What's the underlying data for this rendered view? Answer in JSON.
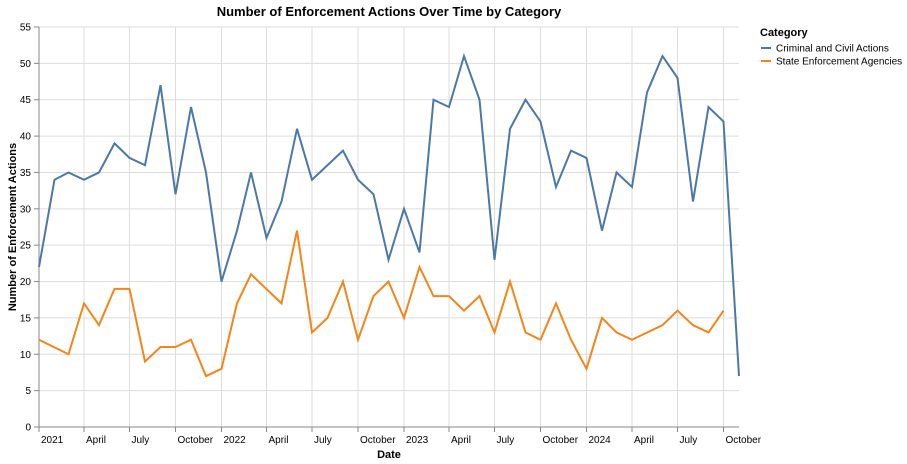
{
  "chart_data": {
    "type": "line",
    "title": "Number of Enforcement Actions Over Time by Category",
    "xlabel": "Date",
    "ylabel": "Number of Enforcement Actions",
    "ylim": [
      0,
      55
    ],
    "yticks": [
      0,
      5,
      10,
      15,
      20,
      25,
      30,
      35,
      40,
      45,
      50,
      55
    ],
    "xlim": [
      "2021-01-01",
      "2024-11-01"
    ],
    "xticks": [
      {
        "date": "2021-01-01",
        "label": "2021"
      },
      {
        "date": "2021-04-01",
        "label": "April"
      },
      {
        "date": "2021-07-01",
        "label": "July"
      },
      {
        "date": "2021-10-01",
        "label": "October"
      },
      {
        "date": "2022-01-01",
        "label": "2022"
      },
      {
        "date": "2022-04-01",
        "label": "April"
      },
      {
        "date": "2022-07-01",
        "label": "July"
      },
      {
        "date": "2022-10-01",
        "label": "October"
      },
      {
        "date": "2023-01-01",
        "label": "2023"
      },
      {
        "date": "2023-04-01",
        "label": "April"
      },
      {
        "date": "2023-07-01",
        "label": "July"
      },
      {
        "date": "2023-10-01",
        "label": "October"
      },
      {
        "date": "2024-01-01",
        "label": "2024"
      },
      {
        "date": "2024-04-01",
        "label": "April"
      },
      {
        "date": "2024-07-01",
        "label": "July"
      },
      {
        "date": "2024-10-01",
        "label": "October"
      }
    ],
    "grid": true,
    "legend": {
      "title": "Category",
      "position": "top-right"
    },
    "series": [
      {
        "name": "Criminal and Civil Actions",
        "color": "#4c78a8",
        "points": [
          [
            "2021-01-01",
            22
          ],
          [
            "2021-02-01",
            34
          ],
          [
            "2021-03-01",
            35
          ],
          [
            "2021-04-01",
            34
          ],
          [
            "2021-05-01",
            35
          ],
          [
            "2021-06-01",
            39
          ],
          [
            "2021-07-01",
            37
          ],
          [
            "2021-08-01",
            36
          ],
          [
            "2021-09-01",
            47
          ],
          [
            "2021-10-01",
            32
          ],
          [
            "2021-11-01",
            44
          ],
          [
            "2021-12-01",
            35
          ],
          [
            "2022-01-01",
            20
          ],
          [
            "2022-02-01",
            27
          ],
          [
            "2022-03-01",
            35
          ],
          [
            "2022-04-01",
            26
          ],
          [
            "2022-05-01",
            31
          ],
          [
            "2022-06-01",
            41
          ],
          [
            "2022-07-01",
            34
          ],
          [
            "2022-09-01",
            38
          ],
          [
            "2022-10-01",
            34
          ],
          [
            "2022-11-01",
            32
          ],
          [
            "2022-12-01",
            23
          ],
          [
            "2023-01-01",
            30
          ],
          [
            "2023-02-01",
            24
          ],
          [
            "2023-03-01",
            45
          ],
          [
            "2023-04-01",
            44
          ],
          [
            "2023-05-01",
            51
          ],
          [
            "2023-06-01",
            45
          ],
          [
            "2023-07-01",
            23
          ],
          [
            "2023-08-01",
            41
          ],
          [
            "2023-09-01",
            45
          ],
          [
            "2023-10-01",
            42
          ],
          [
            "2023-11-01",
            33
          ],
          [
            "2023-12-01",
            38
          ],
          [
            "2024-01-01",
            37
          ],
          [
            "2024-02-01",
            27
          ],
          [
            "2024-03-01",
            35
          ],
          [
            "2024-04-01",
            33
          ],
          [
            "2024-05-01",
            46
          ],
          [
            "2024-06-01",
            51
          ],
          [
            "2024-07-01",
            48
          ],
          [
            "2024-08-01",
            31
          ],
          [
            "2024-09-01",
            44
          ],
          [
            "2024-10-01",
            42
          ],
          [
            "2024-11-01",
            7
          ]
        ]
      },
      {
        "name": "State Enforcement Agencies",
        "color": "#f58518",
        "points": [
          [
            "2021-01-01",
            12
          ],
          [
            "2021-03-01",
            10
          ],
          [
            "2021-04-01",
            17
          ],
          [
            "2021-05-01",
            14
          ],
          [
            "2021-06-01",
            19
          ],
          [
            "2021-07-01",
            19
          ],
          [
            "2021-08-01",
            9
          ],
          [
            "2021-09-01",
            11
          ],
          [
            "2021-10-01",
            11
          ],
          [
            "2021-11-01",
            12
          ],
          [
            "2021-12-01",
            7
          ],
          [
            "2022-01-01",
            8
          ],
          [
            "2022-02-01",
            17
          ],
          [
            "2022-03-01",
            21
          ],
          [
            "2022-05-01",
            17
          ],
          [
            "2022-06-01",
            27
          ],
          [
            "2022-07-01",
            13
          ],
          [
            "2022-08-01",
            15
          ],
          [
            "2022-09-01",
            20
          ],
          [
            "2022-10-01",
            12
          ],
          [
            "2022-11-01",
            18
          ],
          [
            "2022-12-01",
            20
          ],
          [
            "2023-01-01",
            15
          ],
          [
            "2023-02-01",
            22
          ],
          [
            "2023-03-01",
            18
          ],
          [
            "2023-04-01",
            18
          ],
          [
            "2023-05-01",
            16
          ],
          [
            "2023-06-01",
            18
          ],
          [
            "2023-07-01",
            13
          ],
          [
            "2023-08-01",
            20
          ],
          [
            "2023-09-01",
            13
          ],
          [
            "2023-10-01",
            12
          ],
          [
            "2023-11-01",
            17
          ],
          [
            "2023-12-01",
            12
          ],
          [
            "2024-01-01",
            8
          ],
          [
            "2024-02-01",
            15
          ],
          [
            "2024-03-01",
            13
          ],
          [
            "2024-04-01",
            12
          ],
          [
            "2024-06-01",
            14
          ],
          [
            "2024-07-01",
            16
          ],
          [
            "2024-08-01",
            14
          ],
          [
            "2024-09-01",
            13
          ],
          [
            "2024-10-01",
            16
          ]
        ]
      }
    ]
  }
}
